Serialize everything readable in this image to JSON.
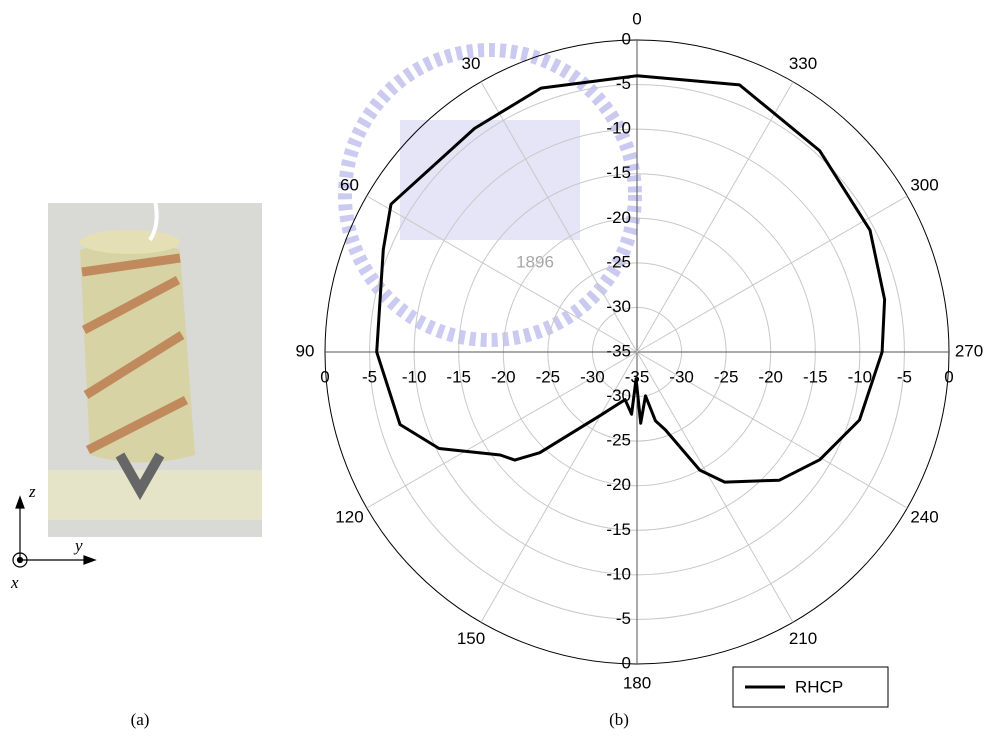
{
  "panel_labels": {
    "a": "(a)",
    "b": "(b)"
  },
  "photo_axes": {
    "z": "z",
    "y": "y",
    "x": "x"
  },
  "watermark": "1896",
  "chart_data": {
    "type": "polar",
    "theta_zero": "top",
    "theta_direction": "counterclockwise",
    "theta_ticks": [
      0,
      30,
      60,
      90,
      120,
      150,
      180,
      210,
      240,
      270,
      300,
      330
    ],
    "rlim": [
      -35,
      0
    ],
    "rticks": [
      -35,
      -30,
      -25,
      -20,
      -15,
      -10,
      -5,
      0
    ],
    "grid": true,
    "legend": "lower right",
    "series": [
      {
        "name": "RHCP",
        "color": "#000000",
        "x": [
          0,
          20,
          36,
          59,
          68,
          90,
          107,
          116,
          127,
          131.5,
          136,
          150,
          166,
          175,
          178,
          180,
          183,
          191,
          195,
          200,
          208,
          214,
          228,
          239.5,
          253,
          270,
          282,
          297.6,
          317.8,
          339,
          360
        ],
        "values": [
          -4,
          -3.5,
          -4,
          -2.8,
          -4.3,
          -5.8,
          -7.2,
          -10.3,
          -15.8,
          -16.7,
          -19.3,
          -26.8,
          -29.5,
          -28,
          -32,
          -31,
          -27,
          -30,
          -27,
          -25.7,
          -20,
          -17.4,
          -13.5,
          -11.2,
          -8.9,
          -7.5,
          -6.6,
          -5.5,
          -4.5,
          -2.9,
          -4
        ]
      }
    ]
  }
}
